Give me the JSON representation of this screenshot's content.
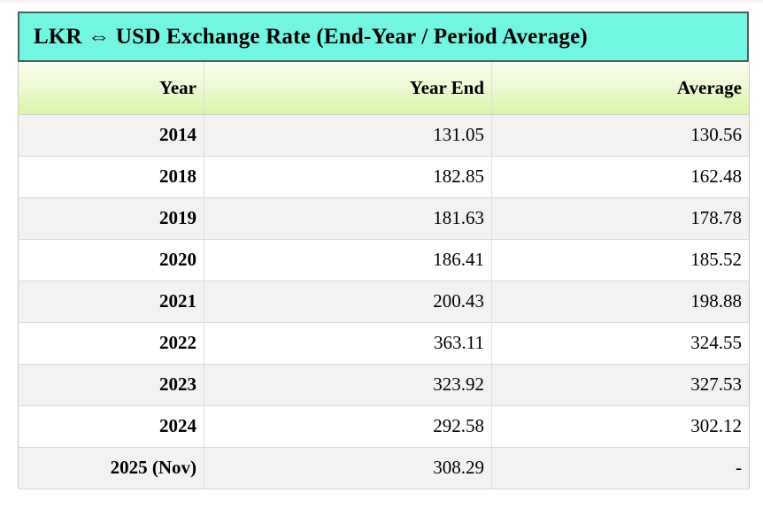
{
  "title": "LKR ⇔ USD Exchange Rate (End-Year / Period Average)",
  "columns": {
    "year": "Year",
    "year_end": "Year End",
    "average": "Average"
  },
  "rows": [
    {
      "year": "2014",
      "year_end": "131.05",
      "average": "130.56"
    },
    {
      "year": "2018",
      "year_end": "182.85",
      "average": "162.48"
    },
    {
      "year": "2019",
      "year_end": "181.63",
      "average": "178.78"
    },
    {
      "year": "2020",
      "year_end": "186.41",
      "average": "185.52"
    },
    {
      "year": "2021",
      "year_end": "200.43",
      "average": "198.88"
    },
    {
      "year": "2022",
      "year_end": "363.11",
      "average": "324.55"
    },
    {
      "year": "2023",
      "year_end": "323.92",
      "average": "327.53"
    },
    {
      "year": "2024",
      "year_end": "292.58",
      "average": "302.12"
    },
    {
      "year": "2025 (Nov)",
      "year_end": "308.29",
      "average": "-"
    }
  ],
  "colors": {
    "title_background": "#73f6e1",
    "title_border": "#4e5e5e",
    "header_gradient_top": "#fafdeb",
    "header_gradient_bottom": "#d9f5ab",
    "stripe_row_background": "#f2f2f2",
    "plain_row_background": "#ffffff",
    "grid_line": "#d8d8d8",
    "text": "#000000"
  },
  "chart_data": {
    "type": "table",
    "title": "LKR ⇔ USD Exchange Rate (End-Year / Period Average)",
    "columns": [
      "Year",
      "Year End",
      "Average"
    ],
    "rows": [
      [
        "2014",
        131.05,
        130.56
      ],
      [
        "2018",
        182.85,
        162.48
      ],
      [
        "2019",
        181.63,
        178.78
      ],
      [
        "2020",
        186.41,
        185.52
      ],
      [
        "2021",
        200.43,
        198.88
      ],
      [
        "2022",
        363.11,
        324.55
      ],
      [
        "2023",
        323.92,
        327.53
      ],
      [
        "2024",
        292.58,
        302.12
      ],
      [
        "2025 (Nov)",
        308.29,
        null
      ]
    ],
    "notes": "Last row Average shown as '-' (no value). Odd rows shaded light gray."
  }
}
